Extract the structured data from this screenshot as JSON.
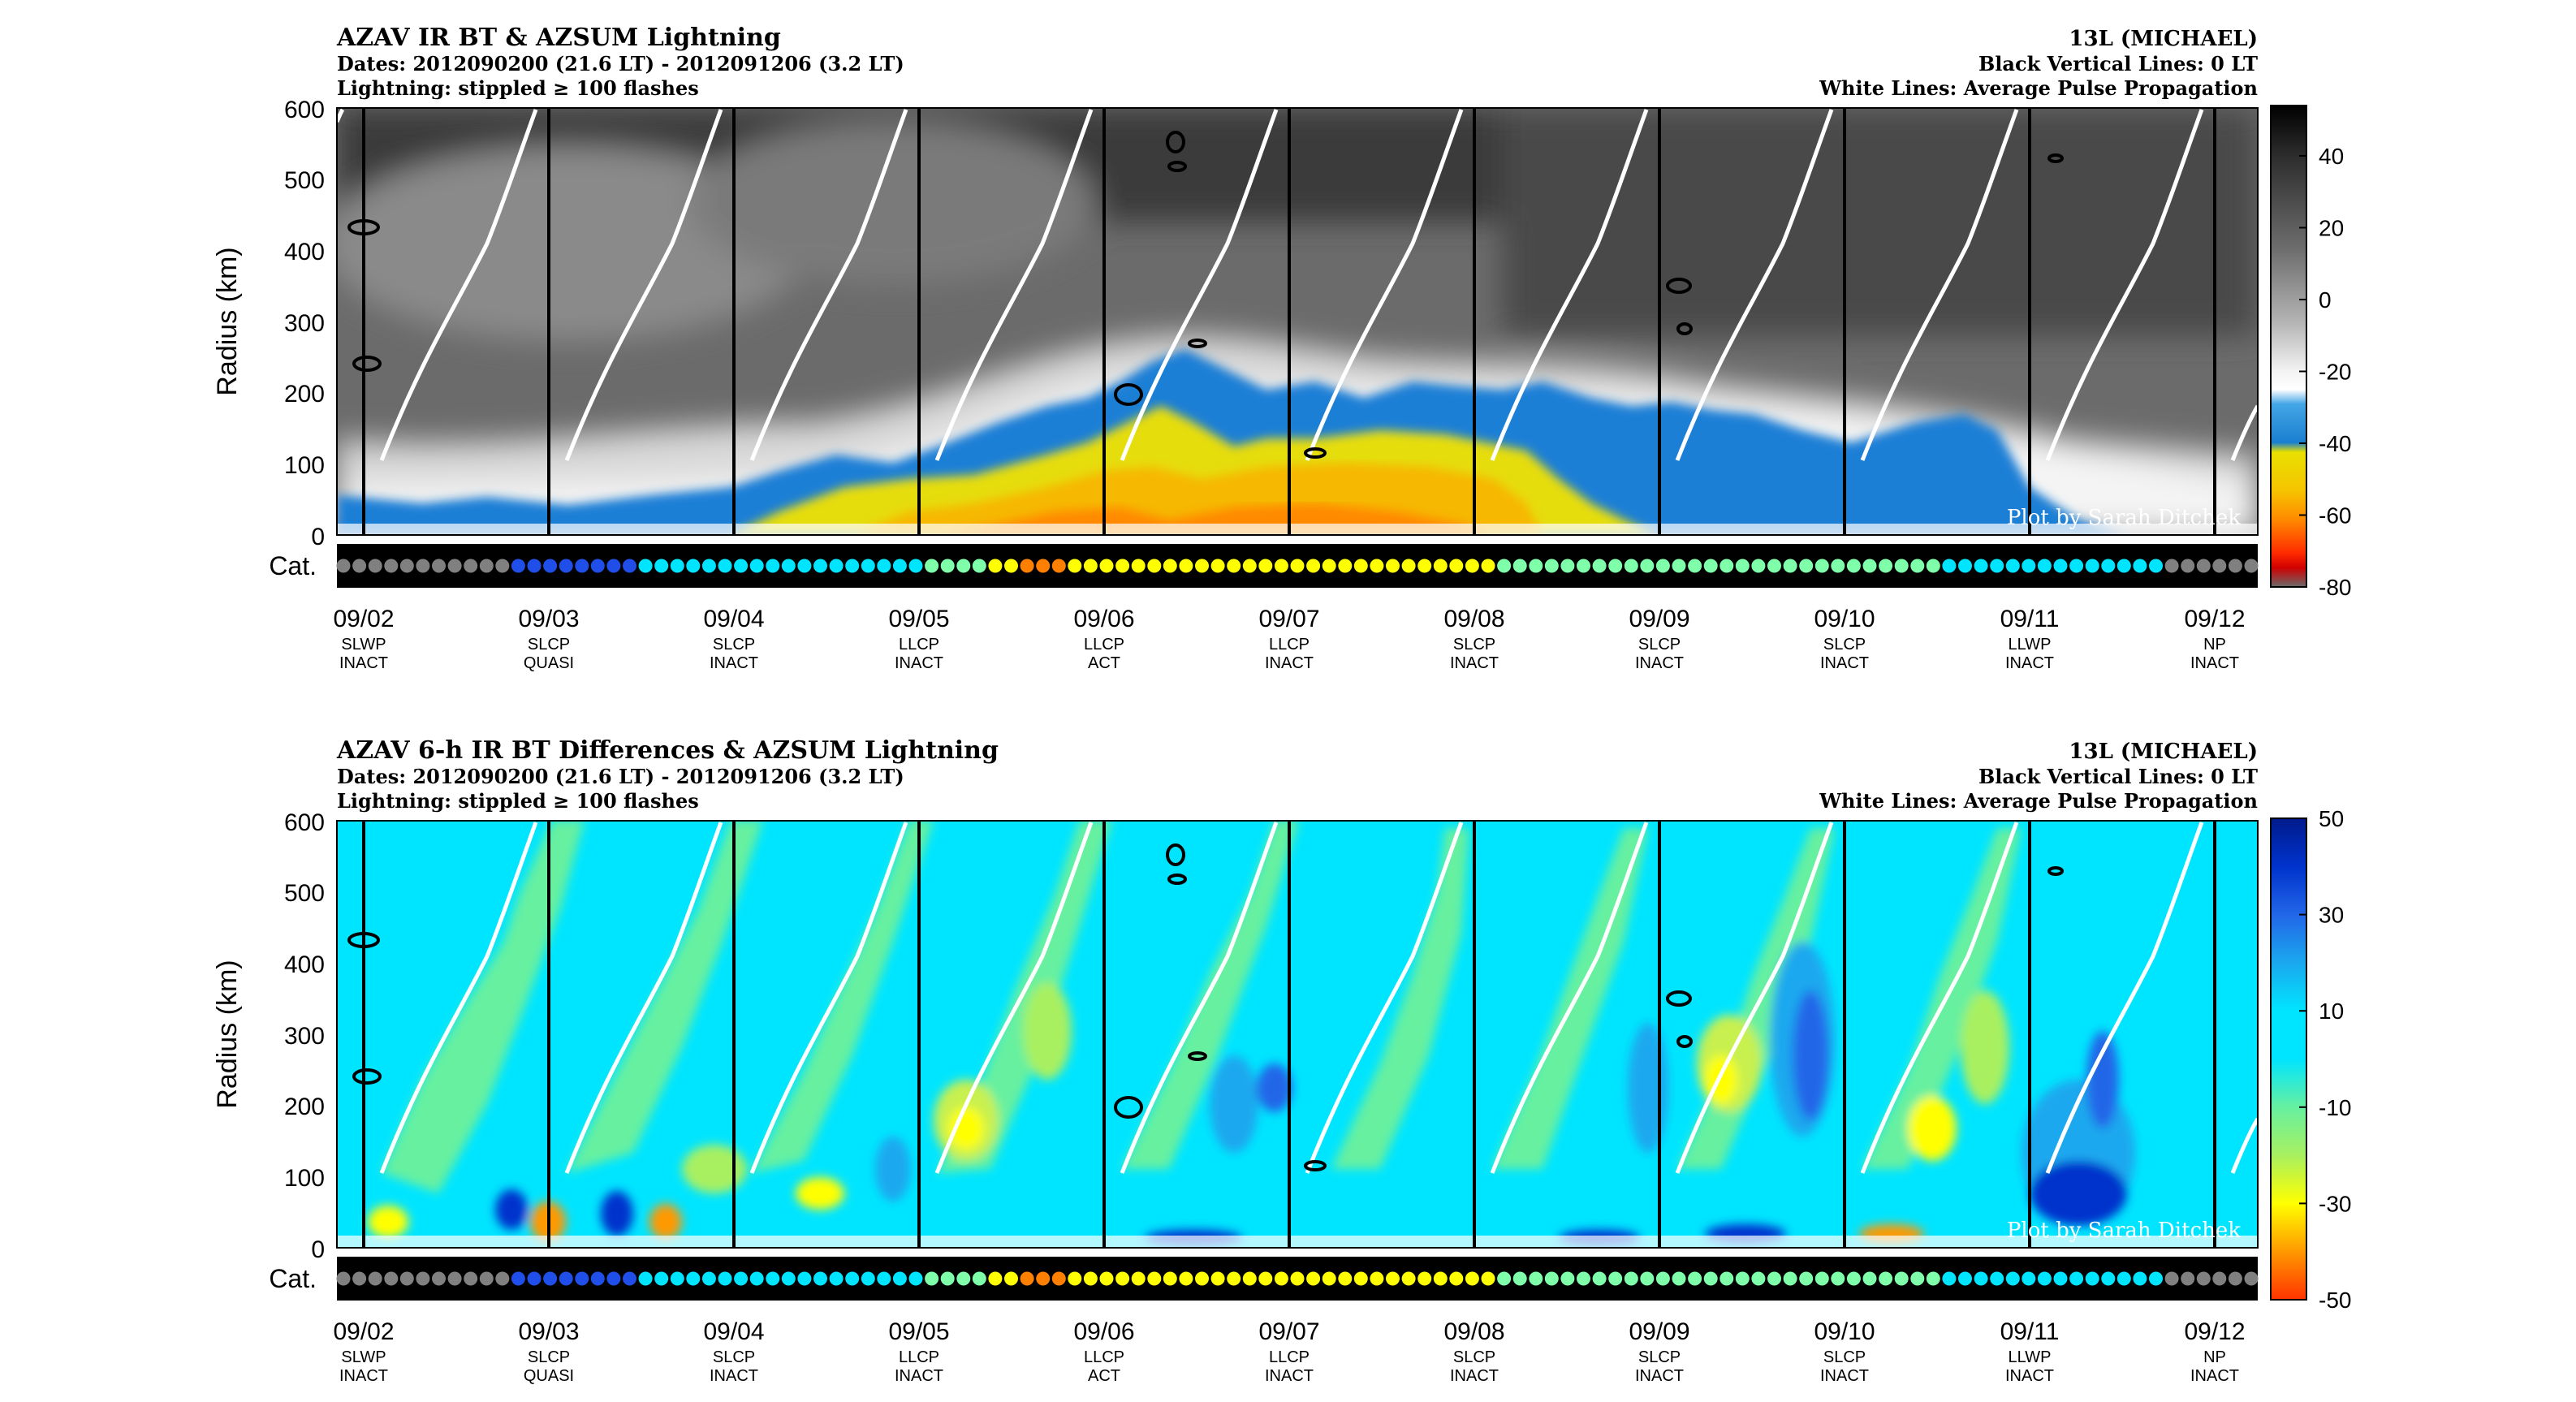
{
  "chart_data": [
    {
      "type": "heatmap",
      "title": "AZAV IR BT & AZSUM Lightning",
      "subtitle_lines": [
        "Dates: 2012090200 (21.6 LT) - 2012091206 (3.2 LT)",
        "Lightning: stippled ≥ 100 flashes"
      ],
      "right_header_lines": [
        "13L (MICHAEL)",
        "Black Vertical Lines: 0 LT",
        "White Lines: Average Pulse Propagation"
      ],
      "ylabel": "Radius (km)",
      "ylim": [
        0,
        600
      ],
      "yticks": [
        "0",
        "100",
        "200",
        "300",
        "400",
        "500",
        "600"
      ],
      "colorbar": {
        "range": [
          -80,
          54
        ],
        "ticks": [
          "40",
          "20",
          "0",
          "-20",
          "-40",
          "-60",
          "-80"
        ],
        "tick_values": [
          40,
          20,
          0,
          -20,
          -40,
          -60,
          -80
        ]
      },
      "credit": "Plot by Sarah Ditchek",
      "cat_label": "Cat."
    },
    {
      "type": "heatmap",
      "title": "AZAV 6-h IR BT Differences & AZSUM Lightning",
      "subtitle_lines": [
        "Dates: 2012090200 (21.6 LT) - 2012091206 (3.2 LT)",
        "Lightning: stippled ≥ 100 flashes"
      ],
      "right_header_lines": [
        "13L (MICHAEL)",
        "Black Vertical Lines: 0 LT",
        "White Lines: Average Pulse Propagation"
      ],
      "ylabel": "Radius (km)",
      "ylim": [
        0,
        600
      ],
      "yticks": [
        "0",
        "100",
        "200",
        "300",
        "400",
        "500",
        "600"
      ],
      "colorbar": {
        "range": [
          -50,
          50
        ],
        "ticks": [
          "50",
          "30",
          "10",
          "-10",
          "-30",
          "-50"
        ],
        "tick_values": [
          50,
          30,
          10,
          -10,
          -30,
          -50
        ]
      },
      "credit": "Plot by Sarah Ditchek",
      "cat_label": "Cat."
    }
  ],
  "days": [
    {
      "date": "09/02",
      "cls": "SLWP",
      "act": "INACT"
    },
    {
      "date": "09/03",
      "cls": "SLCP",
      "act": "QUASI"
    },
    {
      "date": "09/04",
      "cls": "SLCP",
      "act": "INACT"
    },
    {
      "date": "09/05",
      "cls": "LLCP",
      "act": "INACT"
    },
    {
      "date": "09/06",
      "cls": "LLCP",
      "act": "ACT"
    },
    {
      "date": "09/07",
      "cls": "LLCP",
      "act": "INACT"
    },
    {
      "date": "09/08",
      "cls": "SLCP",
      "act": "INACT"
    },
    {
      "date": "09/09",
      "cls": "SLCP",
      "act": "INACT"
    },
    {
      "date": "09/10",
      "cls": "SLCP",
      "act": "INACT"
    },
    {
      "date": "09/11",
      "cls": "LLWP",
      "act": "INACT"
    },
    {
      "date": "09/12",
      "cls": "NP",
      "act": "INACT"
    }
  ],
  "category_colors": {
    "td": "#808080",
    "ts": "#1f4fe8",
    "h1": "#00e5ff",
    "h2": "#7fffaa",
    "h3": "#ffff00",
    "h4": "#ff8000",
    "h5": "#ff3300"
  },
  "category_sequence": [
    "td",
    "td",
    "td",
    "td",
    "td",
    "td",
    "td",
    "td",
    "td",
    "td",
    "td",
    "ts",
    "ts",
    "ts",
    "ts",
    "ts",
    "ts",
    "ts",
    "ts",
    "h1",
    "h1",
    "h1",
    "h1",
    "h1",
    "h1",
    "h1",
    "h1",
    "h1",
    "h1",
    "h1",
    "h1",
    "h1",
    "h1",
    "h1",
    "h1",
    "h1",
    "h1",
    "h2",
    "h2",
    "h2",
    "h2",
    "h3",
    "h3",
    "h4",
    "h4",
    "h4",
    "h3",
    "h3",
    "h3",
    "h3",
    "h3",
    "h3",
    "h3",
    "h3",
    "h3",
    "h3",
    "h3",
    "h3",
    "h3",
    "h3",
    "h3",
    "h3",
    "h3",
    "h3",
    "h3",
    "h3",
    "h3",
    "h3",
    "h3",
    "h3",
    "h3",
    "h3",
    "h3",
    "h2",
    "h2",
    "h2",
    "h2",
    "h2",
    "h2",
    "h2",
    "h2",
    "h2",
    "h2",
    "h2",
    "h2",
    "h2",
    "h2",
    "h2",
    "h2",
    "h2",
    "h2",
    "h2",
    "h2",
    "h2",
    "h2",
    "h2",
    "h2",
    "h2",
    "h2",
    "h2",
    "h2",
    "h1",
    "h1",
    "h1",
    "h1",
    "h1",
    "h1",
    "h1",
    "h1",
    "h1",
    "h1",
    "h1",
    "h1",
    "h1",
    "h1",
    "td",
    "td",
    "td",
    "td",
    "td",
    "td"
  ]
}
